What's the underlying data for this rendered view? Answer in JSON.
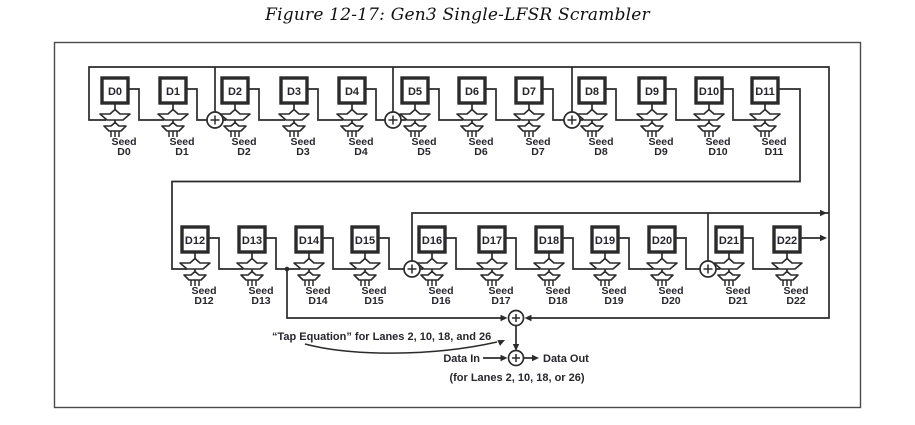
{
  "title": "Figure 12-17: Gen3 Single-LFSR Scrambler",
  "scrambler": {
    "seed_prefix": "Seed",
    "top_row": [
      "D0",
      "D1",
      "D2",
      "D3",
      "D4",
      "D5",
      "D6",
      "D7",
      "D8",
      "D9",
      "D10",
      "D11"
    ],
    "bottom_row": [
      "D12",
      "D13",
      "D14",
      "D15",
      "D16",
      "D17",
      "D18",
      "D19",
      "D20",
      "D21",
      "D22"
    ],
    "xor_taps_top": [
      "D2",
      "D5",
      "D8"
    ],
    "xor_taps_bottom": [
      "D16",
      "D21"
    ],
    "annotations": {
      "tap_equation": "“Tap Equation” for Lanes 2, 10, 18, and 26",
      "data_in": "Data In",
      "data_out": "Data Out",
      "lanes_note": "(for Lanes 2, 10, 18, or 26)"
    }
  },
  "colors": {
    "line": "#2b2b2b",
    "outer_border": "#4b4b4b",
    "background": "#ffffff"
  }
}
